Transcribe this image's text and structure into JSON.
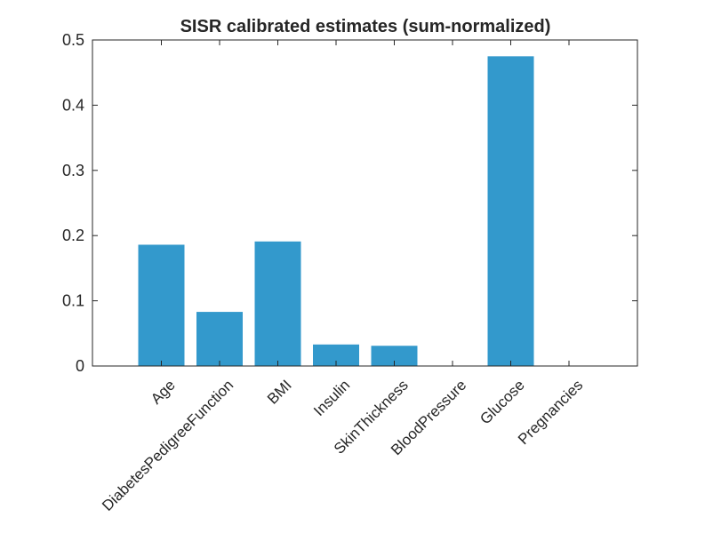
{
  "chart_data": {
    "type": "bar",
    "title": "SISR calibrated estimates (sum-normalized)",
    "xlabel": "",
    "ylabel": "",
    "categories": [
      "Age",
      "DiabetesPedigreeFunction",
      "BMI",
      "Insulin",
      "SkinThickness",
      "BloodPressure",
      "Glucose",
      "Pregnancies"
    ],
    "values": [
      0.186,
      0.083,
      0.191,
      0.033,
      0.031,
      0.0,
      0.475,
      0.0
    ],
    "ylim": [
      0,
      0.5
    ],
    "yticks": [
      0,
      0.1,
      0.2,
      0.3,
      0.4,
      0.5
    ],
    "ytick_labels": [
      "0",
      "0.1",
      "0.2",
      "0.3",
      "0.4",
      "0.5"
    ],
    "bar_color": "#3399cc",
    "grid": false,
    "legend": "none"
  }
}
